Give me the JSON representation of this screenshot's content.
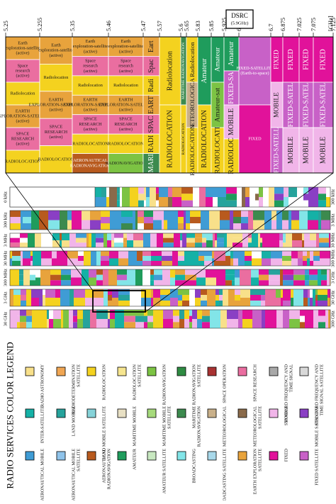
{
  "zoom": {
    "freq_ticks": [
      "5.25",
      "5.255",
      "5.35",
      "5.46",
      "5.47",
      "5.57",
      "5.6",
      "5.65",
      "5.83",
      "5.85",
      "5.925",
      "6.525",
      "6.7",
      "6.875",
      "7.025",
      "7.075",
      "7.125"
    ],
    "unit_label": "[GHz]",
    "dsrc": {
      "title": "DSRC",
      "subtitle": "(5.9GHz)"
    },
    "columns": [
      {
        "cells": [
          {
            "label": "Earth exploration-satellite (active)",
            "color": "#e8a33c"
          },
          {
            "label": "Space research (active)",
            "color": "#ea6ea0"
          },
          {
            "label": "Radiolocation",
            "color": "#f4d21f"
          },
          {
            "label": "EARTH EXPLORATION-SATELLITE (active)",
            "color": "#e8a33c"
          },
          {
            "label": "SPACE RESEARCH (active)",
            "color": "#ea6ea0"
          },
          {
            "label": "RADIOLOCATION",
            "color": "#f4d21f"
          }
        ]
      },
      {
        "cells": [
          {
            "label": "Earth exploration-satellite (active)",
            "color": "#e8a33c"
          },
          {
            "label": "Radiolocation",
            "color": "#f4d21f"
          },
          {
            "label": "EARTH EXPLORATION-SATELLITE (active)",
            "color": "#e8a33c"
          },
          {
            "label": "SPACE RESEARCH (active)",
            "color": "#ea6ea0"
          },
          {
            "label": "RADIOLOCATION",
            "color": "#f4d21f"
          }
        ]
      },
      {
        "cells": [
          {
            "label": "Earth exploration-satellite (active)",
            "color": "#e8a33c"
          },
          {
            "label": "Space research (active)",
            "color": "#ea6ea0"
          },
          {
            "label": "Radiolocation",
            "color": "#f4d21f"
          },
          {
            "label": "EARTH EXPLORATION-SATELLITE (active)",
            "color": "#e8a33c"
          },
          {
            "label": "SPACE RESEARCH (active)",
            "color": "#ea6ea0"
          },
          {
            "label": "RADIOLOCATION",
            "color": "#f4d21f"
          },
          {
            "label": "AERONAUTICAL RADIONAVIGATION",
            "color": "#b85a1e"
          }
        ]
      },
      {
        "cells": [
          {
            "label": "Earth exploration-satellite (active)",
            "color": "#e8a33c"
          },
          {
            "label": "Space research (active)",
            "color": "#ea6ea0"
          },
          {
            "label": "Radiolocation",
            "color": "#f4d21f"
          },
          {
            "label": "EARTH EXPLORATION-SATELLITE (active)",
            "color": "#e8a33c"
          },
          {
            "label": "SPACE RESEARCH (active)",
            "color": "#ea6ea0"
          },
          {
            "label": "RADIOLOCATION",
            "color": "#f4d21f"
          },
          {
            "label": "RADIONAVIGATION",
            "color": "#7cc343"
          }
        ]
      },
      {
        "cells": [
          {
            "label": "Earth exploration-satellite (active)",
            "color": "#e8a33c"
          },
          {
            "label": "Space research (active)",
            "color": "#ea6ea0"
          },
          {
            "label": "Radiolocation",
            "color": "#f4d21f"
          },
          {
            "label": "EARTH EXPLORATION-SATELLITE (active)",
            "color": "#e8a33c"
          },
          {
            "label": "SPACE RESEARCH (active)",
            "color": "#ea6ea0"
          },
          {
            "label": "RADIOLOCATION",
            "color": "#f4d21f"
          },
          {
            "label": "MARITIME RADIONAVIGATION",
            "color": "#3c8a4e"
          }
        ]
      },
      {
        "cells": [
          {
            "label": "Radiolocation",
            "color": "#f4d21f"
          },
          {
            "label": "RADIOLOCATION",
            "color": "#f4d21f"
          }
        ]
      },
      {
        "cells": [
          {
            "label": "MARITIME RADIONAVIGATION",
            "color": "#3c8a4e"
          },
          {
            "label": "RADIOLOCATION",
            "color": "#f4d21f"
          }
        ]
      },
      {
        "cells": [
          {
            "label": "Radiolocation",
            "color": "#f4d21f"
          },
          {
            "label": "METEOROLOGICAL AIDS",
            "color": "#c9b08a"
          },
          {
            "label": "RADIOLOCATION",
            "color": "#f4d21f"
          }
        ]
      },
      {
        "cells": [
          {
            "label": "Amateur",
            "color": "#1f9c5c"
          },
          {
            "label": "RADIOLOCATION",
            "color": "#f4d21f"
          }
        ]
      },
      {
        "cells": [
          {
            "label": "Amateur",
            "color": "#1f9c5c"
          },
          {
            "label": "Amateur-satellite (space-to-Earth)",
            "color": "#7cc343"
          },
          {
            "label": "RADIOLOCATION",
            "color": "#f4d21f"
          }
        ]
      },
      {
        "cells": [
          {
            "label": "Amateur",
            "color": "#1f9c5c"
          },
          {
            "label": "FIXED-SATELLITE (Earth-to-space)",
            "color": "#c861c7"
          },
          {
            "label": "MOBILE",
            "color": "#f1b5e9"
          },
          {
            "label": "RADIOLOCATION",
            "color": "#f4d21f"
          }
        ]
      },
      {
        "cells": [
          {
            "label": "FIXED-SATELLITE (Earth-to-space)",
            "color": "#c861c7"
          },
          {
            "label": "FIXED",
            "color": "#e1129a"
          }
        ]
      },
      {
        "cells": [
          {
            "label": "FIXED",
            "color": "#e1129a"
          },
          {
            "label": "MOBILE",
            "color": "#f1b5e9"
          },
          {
            "label": "FIXED-SATELLITE (Earth-to-space)",
            "color": "#c861c7"
          }
        ]
      },
      {
        "cells": [
          {
            "label": "FIXED",
            "color": "#e1129a"
          },
          {
            "label": "FIXED-SATELLITE (Earth-to-space)",
            "color": "#c861c7"
          },
          {
            "label": "MOBILE",
            "color": "#f1b5e9"
          }
        ]
      },
      {
        "cells": [
          {
            "label": "FIXED",
            "color": "#e1129a"
          },
          {
            "label": "FIXED-SATELLITE (Earth-to-space) (space-to-Earth)",
            "color": "#c861c7"
          },
          {
            "label": "MOBILE",
            "color": "#f1b5e9"
          }
        ]
      },
      {
        "cells": [
          {
            "label": "FIXED",
            "color": "#e1129a"
          },
          {
            "label": "FIXED-SATELLITE (Earth-to-space)",
            "color": "#c861c7"
          },
          {
            "label": "MOBILE",
            "color": "#f1b5e9"
          }
        ]
      }
    ]
  },
  "overview": {
    "rows": [
      {
        "left": "0 kHz",
        "right": "300 kHz"
      },
      {
        "left": "300 kHz",
        "right": "3 MHz"
      },
      {
        "left": "3 MHz",
        "right": "30 MHz"
      },
      {
        "left": "30 MHz",
        "right": "300 MHz"
      },
      {
        "left": "300 MHz",
        "right": "3 GHz"
      },
      {
        "left": "3 GHz",
        "right": "30 GHz"
      },
      {
        "left": "30 GHz",
        "right": "300 GHz"
      }
    ]
  },
  "legend": {
    "title": "RADIO SERVICES COLOR LEGEND",
    "rows": [
      [
        {
          "label": "AERONAUTICAL MOBILE",
          "color": "#3f9cd5"
        },
        {
          "label": "INTER-SATELLITE",
          "color": "#15b1a6"
        },
        {
          "label": "RADIO ASTRONOMY",
          "color": "#f8e08a"
        }
      ],
      [
        {
          "label": "AERONAUTICAL MOBILE SATELLITE",
          "color": "#8fc3ea"
        },
        {
          "label": "LAND MOBILE",
          "color": "#26a39c"
        },
        {
          "label": "RADIODETERMINATION SATELLITE",
          "color": "#f0a653"
        }
      ],
      [
        {
          "label": "AERONAUTICAL RADIONAVIGATION",
          "color": "#b85a1e"
        },
        {
          "label": "LAND MOBILE SATELLITE",
          "color": "#86d3d9"
        },
        {
          "label": "RADIOLOCATION",
          "color": "#f4d21f"
        }
      ],
      [
        {
          "label": "AMATEUR",
          "color": "#1f9c5c"
        },
        {
          "label": "MARITIME MOBILE",
          "color": "#e8e0c4"
        },
        {
          "label": "RADIOLOCATION SATELLITE",
          "color": "#f6e58f"
        }
      ],
      [
        {
          "label": "AMATEUR SATELLITE",
          "color": "#c8e8c0"
        },
        {
          "label": "MARITIME MOBILE SATELLITE",
          "color": "#a6da7c"
        },
        {
          "label": "RADIONAVIGATION",
          "color": "#7cc343"
        }
      ],
      [
        {
          "label": "BROADCASTING",
          "color": "#82e5e8"
        },
        {
          "label": "MARITIME RADIONAVIGATION",
          "color": "#3c8a4e"
        },
        {
          "label": "RADIONAVIGATION SATELLITE",
          "color": "#2e8b42"
        }
      ],
      [
        {
          "label": "BROADCASTING SATELLITE",
          "color": "#a8d8ea"
        },
        {
          "label": "METEOROLOGICAL",
          "color": "#c9b08a"
        },
        {
          "label": "SPACE OPERATION",
          "color": "#a83232"
        }
      ],
      [
        {
          "label": "EARTH EXPLORATION SATELLITE",
          "color": "#e8a33c"
        },
        {
          "label": "METEOROLOGICAL SATELLITE",
          "color": "#8a6a4a"
        },
        {
          "label": "SPACE RESEARCH",
          "color": "#ea6ea0"
        }
      ],
      [
        {
          "label": "FIXED",
          "color": "#e1129a"
        },
        {
          "label": "MOBILE",
          "color": "#f1b5e9"
        },
        {
          "label": "STANDARD FREQUENCY AND TIME SIGNAL",
          "color": "#a8a8a8"
        }
      ],
      [
        {
          "label": "FIXED SATELLITE",
          "color": "#c861c7"
        },
        {
          "label": "MOBILE SATELLITE",
          "color": "#8a3fc4"
        },
        {
          "label": "STANDARD FREQUENCY AND TIME SIGNAL SATELLITE",
          "color": "#d8d8d8"
        }
      ]
    ]
  },
  "chart_data": {
    "type": "table",
    "title": "RADIO SERVICES COLOR LEGEND",
    "x": [
      "5.25",
      "5.255",
      "5.35",
      "5.46",
      "5.47",
      "5.57",
      "5.6",
      "5.65",
      "5.83",
      "5.85",
      "5.925",
      "6.525",
      "6.7",
      "6.875",
      "7.025",
      "7.075",
      "7.125"
    ],
    "unit": "[GHz]"
  }
}
